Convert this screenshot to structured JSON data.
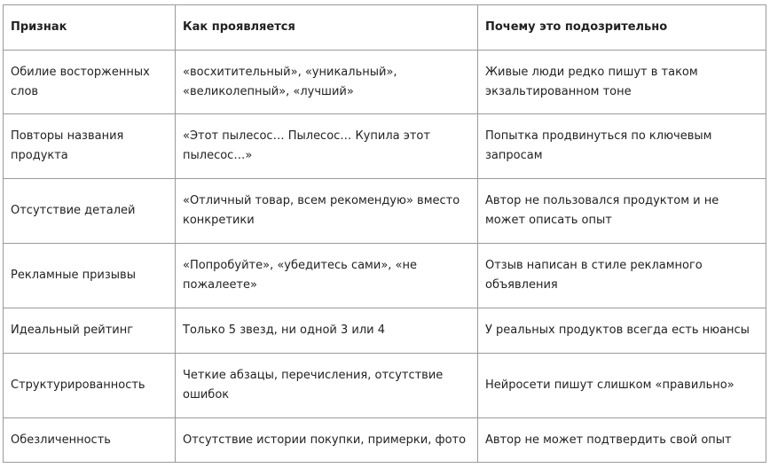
{
  "table": {
    "headers": [
      "Признак",
      "Как проявляется",
      "Почему это подозрительно"
    ],
    "rows": [
      [
        "Обилие восторженных слов",
        "«восхитительный», «уникальный», «великолепный», «лучший»",
        "Живые люди редко пишут в таком экзальтированном тоне"
      ],
      [
        "Повторы названия продукта",
        "«Этот пылесос… Пылесос… Купила этот пылесос…»",
        "Попытка продвинуться по ключевым запросам"
      ],
      [
        "Отсутствие деталей",
        "«Отличный товар, всем рекомендую» вместо конкретики",
        "Автор не пользовался продуктом и не может описать опыт"
      ],
      [
        "Рекламные призывы",
        "«Попробуйте», «убедитесь сами», «не пожалеете»",
        "Отзыв написан в стиле рекламного объявления"
      ],
      [
        "Идеальный рейтинг",
        "Только 5 звезд, ни одной 3 или 4",
        "У реальных продуктов всегда есть нюансы"
      ],
      [
        "Структурированность",
        "Четкие абзацы, перечисления, отсутствие ошибок",
        "Нейросети пишут слишком «правильно»"
      ],
      [
        "Обезличенность",
        "Отсутствие истории покупки, примерки, фото",
        "Автор не может подтвердить свой опыт"
      ]
    ]
  }
}
